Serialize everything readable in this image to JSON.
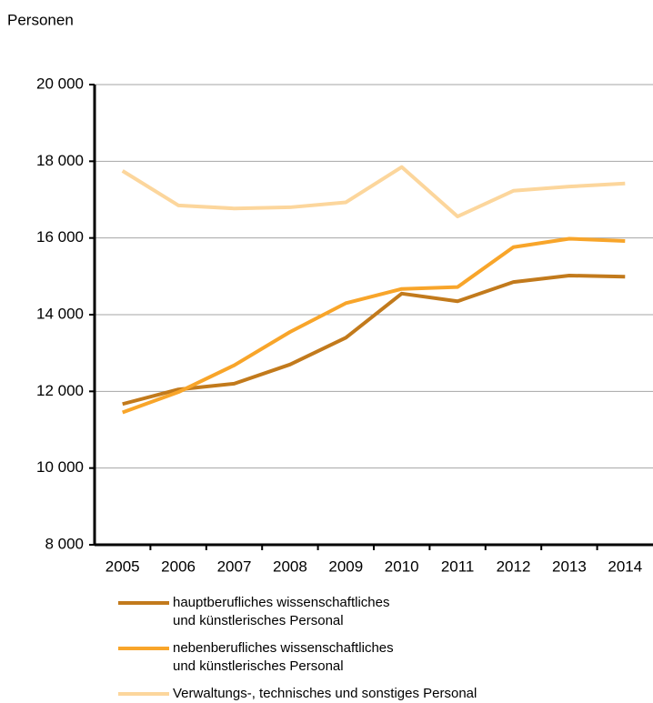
{
  "chart_data": {
    "type": "line",
    "y_label": "Personen",
    "categories": [
      "2005",
      "2006",
      "2007",
      "2008",
      "2009",
      "2010",
      "2011",
      "2012",
      "2013",
      "2014"
    ],
    "series": [
      {
        "name": "hauptberufliches wissenschaftliches\nund künstlerisches Personal",
        "color": "#c27a1c",
        "values": [
          11670,
          12050,
          12200,
          12700,
          13400,
          14550,
          14350,
          14850,
          15020,
          14990
        ]
      },
      {
        "name": "nebenberufliches wissenschaftliches\nund künstlerisches Personal",
        "color": "#f8a52a",
        "values": [
          11450,
          11980,
          12680,
          13550,
          14300,
          14670,
          14720,
          15760,
          15980,
          15920
        ]
      },
      {
        "name": "Verwaltungs-, technisches und sonstiges Personal",
        "color": "#fcd69c",
        "values": [
          17750,
          16850,
          16770,
          16800,
          16930,
          17850,
          16560,
          17230,
          17340,
          17420
        ]
      }
    ],
    "ylim": [
      8000,
      20000
    ],
    "yticks": [
      {
        "value": 8000,
        "label": "8 000"
      },
      {
        "value": 10000,
        "label": "10 000"
      },
      {
        "value": 12000,
        "label": "12 000"
      },
      {
        "value": 14000,
        "label": "14 000"
      },
      {
        "value": 16000,
        "label": "16 000"
      },
      {
        "value": 18000,
        "label": "18 000"
      },
      {
        "value": 20000,
        "label": "20 000"
      }
    ],
    "grid": true
  }
}
